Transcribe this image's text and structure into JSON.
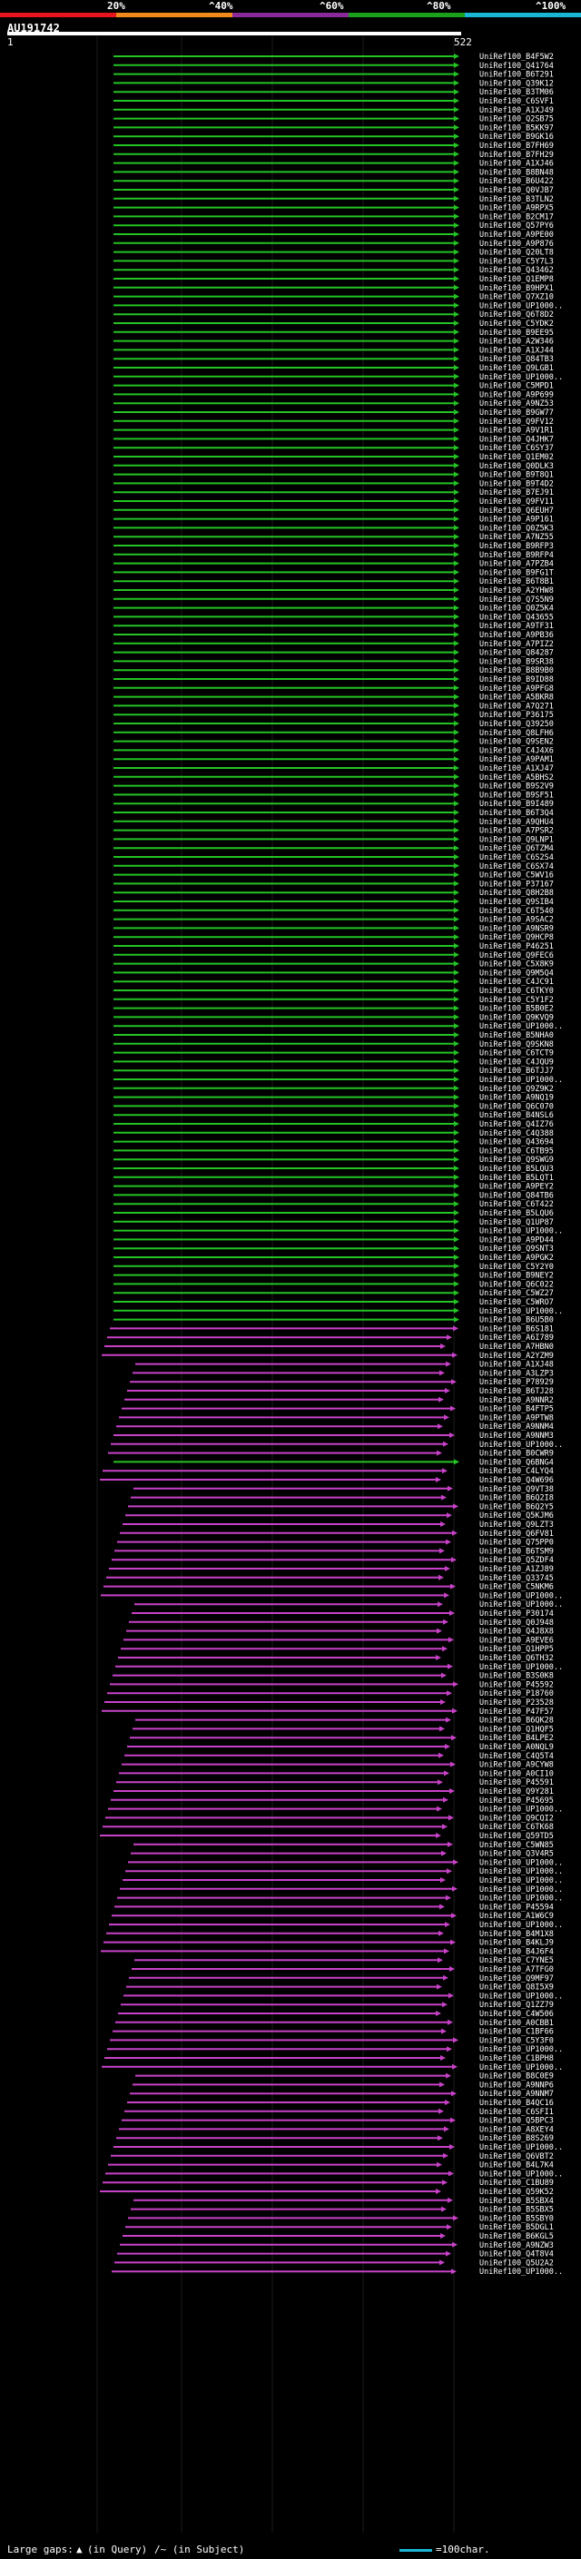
{
  "query": {
    "id": "AU191742",
    "start": "1",
    "end": "522"
  },
  "scale": {
    "ticks": [
      "20%",
      "^40%",
      "^60%",
      "^80%",
      "^100%"
    ],
    "segment_colors": [
      "#e8141e",
      "#f08a1a",
      "#8a2a9a",
      "#1aa01a",
      "#19b6d6"
    ]
  },
  "legend": {
    "gaps_label": "Large gaps:",
    "in_query": "(in Query)",
    "in_subject": "/~ (in Subject)",
    "scale_label": "=100char."
  },
  "hit_ids": [
    "UniRef100_B4F5W2",
    "UniRef100_Q41764",
    "UniRef100_B6T291",
    "UniRef100_Q39K12",
    "UniRef100_B3TM06",
    "UniRef100_C6SVF1",
    "UniRef100_A1XJ49",
    "UniRef100_Q2SB75",
    "UniRef100_B5KK97",
    "UniRef100_B9GK16",
    "UniRef100_B7FH69",
    "UniRef100_B7FH29",
    "UniRef100_A1XJ46",
    "UniRef100_B8BN48",
    "UniRef100_B6U422",
    "UniRef100_Q0VJB7",
    "UniRef100_B3TLN2",
    "UniRef100_A9RPX5",
    "UniRef100_B2CM17",
    "UniRef100_Q57PY6",
    "UniRef100_A9PE00",
    "UniRef100_A9P876",
    "UniRef100_Q20LT8",
    "UniRef100_C5Y7L3",
    "UniRef100_Q43462",
    "UniRef100_Q1EMP8",
    "UniRef100_B9HPX1",
    "UniRef100_Q7XZ10",
    "UniRef100_UP1000..",
    "UniRef100_Q6T8D2",
    "UniRef100_C5YDK2",
    "UniRef100_B9EE95",
    "UniRef100_A2W346",
    "UniRef100_A1XJ44",
    "UniRef100_Q84TB3",
    "UniRef100_Q9LGB1",
    "UniRef100_UP1000..",
    "UniRef100_C5MPD1",
    "UniRef100_A9P699",
    "UniRef100_A9NZ53",
    "UniRef100_B9GW77",
    "UniRef100_Q9FV12",
    "UniRef100_A9V1R1",
    "UniRef100_Q4JHK7",
    "UniRef100_C6SY37",
    "UniRef100_Q1EM02",
    "UniRef100_Q0DLK3",
    "UniRef100_B9T8Q1",
    "UniRef100_B9T4D2",
    "UniRef100_B7EJ91",
    "UniRef100_Q9FV11",
    "UniRef100_Q6EUH7",
    "UniRef100_A9P161",
    "UniRef100_Q0Z5K3",
    "UniRef100_A7NZ55",
    "UniRef100_B9RFP3",
    "UniRef100_B9RFP4",
    "UniRef100_A7PZB4",
    "UniRef100_B9FG1T",
    "UniRef100_B6T8B1",
    "UniRef100_A2YHW8",
    "UniRef100_Q7S5N9",
    "UniRef100_Q0Z5K4",
    "UniRef100_Q43655",
    "UniRef100_A9TF31",
    "UniRef100_A9PB36",
    "UniRef100_A7PIZ2",
    "UniRef100_Q84287",
    "UniRef100_B9SR38",
    "UniRef100_B8B9B0",
    "UniRef100_B9ID88",
    "UniRef100_A9PFG8",
    "UniRef100_A5BKR8",
    "UniRef100_A7Q271",
    "UniRef100_P36175",
    "UniRef100_Q39250",
    "UniRef100_Q8LFH6",
    "UniRef100_Q9SEN2",
    "UniRef100_C4J4X6",
    "UniRef100_A9PAM1",
    "UniRef100_A1XJ47",
    "UniRef100_A5BHS2",
    "UniRef100_B9S2V9",
    "UniRef100_B9SF51",
    "UniRef100_B9I489",
    "UniRef100_B6T3Q4",
    "UniRef100_A9QHU4",
    "UniRef100_A7PSR2",
    "UniRef100_Q9LNP1",
    "UniRef100_Q6TZM4",
    "UniRef100_C6S2S4",
    "UniRef100_C6SX74",
    "UniRef100_C5WV16",
    "UniRef100_P37167",
    "UniRef100_Q8H2B8",
    "UniRef100_Q9SIB4",
    "UniRef100_C6T540",
    "UniRef100_A9SAC2",
    "UniRef100_A9NSR9",
    "UniRef100_Q9HCP8",
    "UniRef100_P46251",
    "UniRef100_Q9FEC6",
    "UniRef100_C5X8K9",
    "UniRef100_Q9M5Q4",
    "UniRef100_C4JC91",
    "UniRef100_C6TKY0",
    "UniRef100_C5Y1F2",
    "UniRef100_B5B0E2",
    "UniRef100_Q9KVQ9",
    "UniRef100_UP1000..",
    "UniRef100_B5NHA0",
    "UniRef100_Q9SKN8",
    "UniRef100_C6TCT9",
    "UniRef100_C4JQU9",
    "UniRef100_B6TJJ7",
    "UniRef100_UP1000..",
    "UniRef100_Q9Z9K2",
    "UniRef100_A9NQ19",
    "UniRef100_Q6C070",
    "UniRef100_B4NSL6",
    "UniRef100_Q4IZ76",
    "UniRef100_C4Q388",
    "UniRef100_Q43694",
    "UniRef100_C6TB95",
    "UniRef100_Q9SWG9",
    "UniRef100_B5LQU3",
    "UniRef100_B5LQT1",
    "UniRef100_A9PEY2",
    "UniRef100_Q84TB6",
    "UniRef100_C6T422",
    "UniRef100_B5LQU6",
    "UniRef100_Q1UP87",
    "UniRef100_UP1000..",
    "UniRef100_A9PD44",
    "UniRef100_Q9SNT3",
    "UniRef100_A9PGK2",
    "UniRef100_C5Y2Y0",
    "UniRef100_B9NEY2",
    "UniRef100_Q6C022",
    "UniRef100_C5WZ27",
    "UniRef100_C5WRO7",
    "UniRef100_UP1000..",
    "UniRef100_B6U5B0",
    "UniRef100_B6S181",
    "UniRef100_A6I789",
    "UniRef100_A7HBN0",
    "UniRef100_A2YZM9",
    "UniRef100_A1XJ48",
    "UniRef100_A3LZP3",
    "UniRef100_P78929",
    "UniRef100_B6TJ28",
    "UniRef100_A9NNR2",
    "UniRef100_B4FTP5",
    "UniRef100_A9PTW8",
    "UniRef100_A9NNM4",
    "UniRef100_A9NNM3",
    "UniRef100_UP1000..",
    "UniRef100_B0CWR9",
    "UniRef100_Q6BNG4",
    "UniRef100_C4LYQ4",
    "UniRef100_Q4W696",
    "UniRef100_Q9VT38",
    "UniRef100_B6Q2I8",
    "UniRef100_B6Q2Y5",
    "UniRef100_Q5KJM6",
    "UniRef100_Q9LZT3",
    "UniRef100_Q6FV81",
    "UniRef100_Q75PP0",
    "UniRef100_B6TSM9",
    "UniRef100_Q5ZDF4",
    "UniRef100_A1ZJ89",
    "UniRef100_Q33745",
    "UniRef100_C5NKM6",
    "UniRef100_UP1000..",
    "UniRef100_UP1000..",
    "UniRef100_P30174",
    "UniRef100_Q0J948",
    "UniRef100_Q4J8X8",
    "UniRef100_A9EVE6",
    "UniRef100_Q1HPP5",
    "UniRef100_Q6TH32",
    "UniRef100_UP1000..",
    "UniRef100_B3S0K8",
    "UniRef100_P45592",
    "UniRef100_P18760",
    "UniRef100_P23528",
    "UniRef100_P47F57",
    "UniRef100_B6QK28",
    "UniRef100_Q1HQF5",
    "UniRef100_B4LPE2",
    "UniRef100_A0NQL9",
    "UniRef100_C4Q5T4",
    "UniRef100_A9CYW8",
    "UniRef100_A0CI10",
    "UniRef100_P45591",
    "UniRef100_Q9Y281",
    "UniRef100_P45695",
    "UniRef100_UP1000..",
    "UniRef100_Q9CQI2",
    "UniRef100_C6TK68",
    "UniRef100_Q59TD5",
    "UniRef100_C5WN85",
    "UniRef100_Q3V4R5",
    "UniRef100_UP1000..",
    "UniRef100_UP1000..",
    "UniRef100_UP1000..",
    "UniRef100_UP1000..",
    "UniRef100_UP1000..",
    "UniRef100_P45594",
    "UniRef100_A1W6C9",
    "UniRef100_UP1000..",
    "UniRef100_B4M1X8",
    "UniRef100_B4KLJ9",
    "UniRef100_B4J6F4",
    "UniRef100_C7YNE5",
    "UniRef100_A7TFG0",
    "UniRef100_Q9MF97",
    "UniRef100_Q8I5X9",
    "UniRef100_UP1000..",
    "UniRef100_Q1ZZ79",
    "UniRef100_C4W506",
    "UniRef100_A0CBB1",
    "UniRef100_C1BF66",
    "UniRef100_C5Y3F0",
    "UniRef100_UP1000..",
    "UniRef100_C1BPH8",
    "UniRef100_UP1000..",
    "UniRef100_B8C0E9",
    "UniRef100_A9NNP6",
    "UniRef100_A9NNM7",
    "UniRef100_B4QC16",
    "UniRef100_C6SFI1",
    "UniRef100_Q5BPC3",
    "UniRef100_A8XEY4",
    "UniRef100_B8S269",
    "UniRef100_UP1000..",
    "UniRef100_Q6VBT2",
    "UniRef100_B4L7K4",
    "UniRef100_UP1000..",
    "UniRef100_C1BU89",
    "UniRef100_Q59K52",
    "UniRef100_B5SBX4",
    "UniRef100_B5SBX5",
    "UniRef100_B5SBY0",
    "UniRef100_B5DGL1",
    "UniRef100_B6KGL5",
    "UniRef100_A9NZW3",
    "UniRef100_Q4T8V4",
    "UniRef100_Q5U2A2",
    "UniRef100_UP1000.."
  ]
}
